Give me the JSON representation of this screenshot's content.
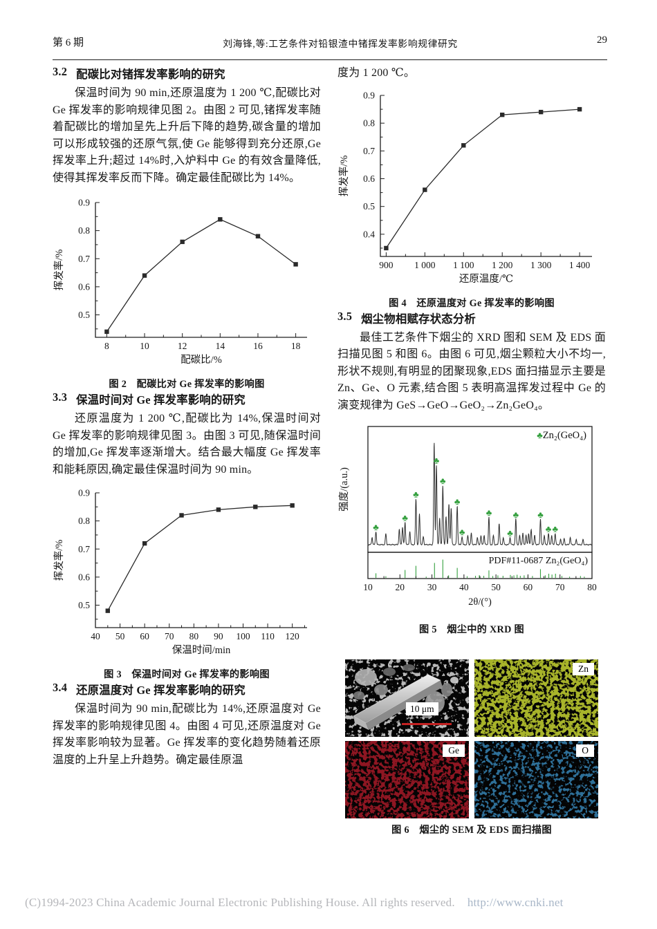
{
  "header": {
    "issue": "第 6 期",
    "running_title": "刘海锋,等:工艺条件对铅银渣中锗挥发率影响规律研究",
    "page_number": "29"
  },
  "footer": {
    "copyright": "(C)1994-2023 China Academic Journal Electronic Publishing House. All rights reserved.",
    "url": "http://www.cnki.net"
  },
  "sections": {
    "s32": {
      "num": "3.2",
      "title": "配碳比对锗挥发率影响的研究",
      "body": "保温时间为 90 min,还原温度为 1 200 ℃,配碳比对 Ge 挥发率的影响规律见图 2。由图 2 可见,锗挥发率随着配碳比的增加呈先上升后下降的趋势,碳含量的增加可以形成较强的还原气氛,使 Ge 能够得到充分还原,Ge 挥发率上升;超过 14%时,入炉料中 Ge 的有效含量降低,使得其挥发率反而下降。确定最佳配碳比为 14%。"
    },
    "s33": {
      "num": "3.3",
      "title": "保温时间对 Ge 挥发率影响的研究",
      "body": "还原温度为 1 200 ℃,配碳比为 14%,保温时间对 Ge 挥发率的影响规律见图 3。由图 3 可见,随保温时间的增加,Ge 挥发率逐渐增大。结合最大幅度 Ge 挥发率和能耗原因,确定最佳保温时间为 90 min。"
    },
    "s34": {
      "num": "3.4",
      "title": "还原温度对 Ge 挥发率影响的研究",
      "body": "保温时间为 90 min,配碳比为 14%,还原温度对 Ge 挥发率的影响规律见图 4。由图 4 可见,还原温度对 Ge 挥发率影响较为显著。Ge 挥发率的变化趋势随着还原温度的上升呈上升趋势。确定最佳原温",
      "continuation": "度为 1 200 ℃。"
    },
    "s35": {
      "num": "3.5",
      "title": "烟尘物相赋存状态分析",
      "body": "最佳工艺条件下烟尘的 XRD 图和 SEM 及 EDS 面扫描见图 5 和图 6。由图 6 可见,烟尘颗粒大小不均一,形状不规则,有明显的团聚现象,EDS 面扫描显示主要是 Zn、Ge、O 元素,结合图 5 表明高温挥发过程中 Ge 的演变规律为 GeS→GeO→GeO₂→Zn₂GeO₄。"
    }
  },
  "figures": {
    "fig2": {
      "caption": "图 2　配碳比对 Ge 挥发率的影响图"
    },
    "fig3": {
      "caption": "图 3　保温时间对 Ge 挥发率的影响图"
    },
    "fig4": {
      "caption": "图 4　还原温度对 Ge 挥发率的影响图"
    },
    "fig5": {
      "caption": "图 5　烟尘中的 XRD 图"
    },
    "fig6": {
      "caption": "图 6　烟尘的 SEM 及 EDS 面扫描图",
      "panels": [
        {
          "type": "sem",
          "scale_label": "10 μm",
          "scalebar_color": "#c42222"
        },
        {
          "type": "eds",
          "label": "Zn",
          "color": "#a8b42c",
          "seed": 11,
          "cut": -11.0
        },
        {
          "type": "eds",
          "label": "Ge",
          "color": "#8e1522",
          "seed": 23,
          "cut": -11.4
        },
        {
          "type": "eds",
          "label": "O",
          "color": "#2e6f99",
          "seed": 37,
          "cut": -12.4
        }
      ]
    }
  },
  "chart_data": [
    {
      "id": "fig2",
      "type": "line",
      "title": "配碳比对 Ge 挥发率的影响图",
      "xlabel": "配碳比/%",
      "ylabel": "挥发率/%",
      "x": [
        8,
        10,
        12,
        14,
        16,
        18
      ],
      "y": [
        0.44,
        0.64,
        0.76,
        0.84,
        0.78,
        0.68
      ],
      "xlim": [
        7.4,
        18.6
      ],
      "ylim": [
        0.42,
        0.9
      ],
      "xticks": [
        8,
        10,
        12,
        14,
        16,
        18
      ],
      "yticks": [
        0.5,
        0.6,
        0.7,
        0.8,
        0.9
      ],
      "xminor": 1,
      "yminor": 0.05,
      "line_color": "#2a2a2a",
      "marker": "square",
      "grid": false,
      "legend": null
    },
    {
      "id": "fig3",
      "type": "line",
      "title": "保温时间对 Ge 挥发率的影响图",
      "xlabel": "保温时间/min",
      "ylabel": "挥发率/%",
      "x": [
        45,
        60,
        75,
        90,
        105,
        120
      ],
      "y": [
        0.48,
        0.72,
        0.82,
        0.84,
        0.85,
        0.855
      ],
      "xlim": [
        40,
        126
      ],
      "ylim": [
        0.42,
        0.9
      ],
      "xticks": [
        40,
        50,
        60,
        70,
        80,
        90,
        100,
        110,
        120
      ],
      "yticks": [
        0.5,
        0.6,
        0.7,
        0.8,
        0.9
      ],
      "xminor": 5,
      "yminor": 0.05,
      "line_color": "#2a2a2a",
      "marker": "square",
      "grid": false,
      "legend": null
    },
    {
      "id": "fig4",
      "type": "line",
      "title": "还原温度对 Ge 挥发率的影响图",
      "xlabel": "还原温度/℃",
      "ylabel": "挥发率/%",
      "x": [
        900,
        1000,
        1100,
        1200,
        1300,
        1400
      ],
      "y": [
        0.35,
        0.56,
        0.72,
        0.83,
        0.84,
        0.85
      ],
      "xlim": [
        885,
        1432
      ],
      "ylim": [
        0.32,
        0.9
      ],
      "xticks": [
        900,
        1000,
        1100,
        1200,
        1300,
        1400
      ],
      "xtick_labels": [
        "900",
        "1 000",
        "1 100",
        "1 200",
        "1 300",
        "1 400"
      ],
      "yticks": [
        0.4,
        0.5,
        0.6,
        0.7,
        0.8,
        0.9
      ],
      "xminor": 50,
      "yminor": 0.05,
      "line_color": "#2a2a2a",
      "marker": "square",
      "grid": false,
      "legend": null
    },
    {
      "id": "fig5",
      "type": "xrd",
      "title": "烟尘中的 XRD 图",
      "xlabel": "2θ/(°)",
      "ylabel": "强度/(a.u.)",
      "xlim": [
        10,
        80
      ],
      "xticks": [
        10,
        20,
        30,
        40,
        50,
        60,
        70,
        80
      ],
      "xminor": 5,
      "legend": "Zn₂(GeO₄)",
      "legend_marker": "♣",
      "marker_color": "#35a03f",
      "line_color": "#2f2f2f",
      "ref_label": "PDF#11-0687 Zn₂(GeO₄)",
      "peaks": [
        [
          11.3,
          7
        ],
        [
          12.5,
          13
        ],
        [
          15.6,
          11
        ],
        [
          19.8,
          15
        ],
        [
          20.8,
          17
        ],
        [
          21.6,
          22
        ],
        [
          23.1,
          13
        ],
        [
          25.0,
          45
        ],
        [
          26.1,
          30
        ],
        [
          27.3,
          8
        ],
        [
          30.7,
          100
        ],
        [
          31.4,
          78
        ],
        [
          32.4,
          26
        ],
        [
          33.4,
          58
        ],
        [
          34.4,
          28
        ],
        [
          35.3,
          40
        ],
        [
          36.0,
          36
        ],
        [
          37.9,
          38
        ],
        [
          39.4,
          8
        ],
        [
          41.2,
          9
        ],
        [
          42.3,
          11
        ],
        [
          44.2,
          7
        ],
        [
          45.3,
          9
        ],
        [
          46.3,
          9
        ],
        [
          47.8,
          27
        ],
        [
          49.2,
          9
        ],
        [
          51.0,
          21
        ],
        [
          52.3,
          7
        ],
        [
          54.4,
          7
        ],
        [
          56.2,
          25
        ],
        [
          57.4,
          9
        ],
        [
          58.4,
          11
        ],
        [
          59.4,
          9
        ],
        [
          60.2,
          11
        ],
        [
          61.0,
          15
        ],
        [
          62.1,
          9
        ],
        [
          63.9,
          25
        ],
        [
          65.1,
          9
        ],
        [
          66.4,
          11
        ],
        [
          67.4,
          9
        ],
        [
          68.5,
          11
        ],
        [
          70.2,
          5
        ],
        [
          71.3,
          6
        ],
        [
          73.2,
          7
        ],
        [
          75.1,
          5
        ],
        [
          77.2,
          5
        ]
      ],
      "marked": [
        12.5,
        21.6,
        25.0,
        31.4,
        33.4,
        37.9,
        39.4,
        47.8,
        54.4,
        56.2,
        63.9,
        66.4,
        68.5
      ],
      "ref_sticks": [
        [
          12.5,
          22
        ],
        [
          15.6,
          8
        ],
        [
          21.6,
          38
        ],
        [
          25.0,
          58
        ],
        [
          28.2,
          6
        ],
        [
          30.8,
          72
        ],
        [
          33.4,
          88
        ],
        [
          35.2,
          12
        ],
        [
          37.9,
          48
        ],
        [
          41.0,
          8
        ],
        [
          43.6,
          10
        ],
        [
          44.8,
          13
        ],
        [
          46.2,
          10
        ],
        [
          47.8,
          36
        ],
        [
          49.0,
          9
        ],
        [
          50.6,
          12
        ],
        [
          52.2,
          10
        ],
        [
          54.5,
          14
        ],
        [
          55.6,
          12
        ],
        [
          56.6,
          15
        ],
        [
          57.6,
          10
        ],
        [
          58.8,
          12
        ],
        [
          60.0,
          10
        ],
        [
          61.4,
          9
        ],
        [
          63.9,
          42
        ],
        [
          65.4,
          12
        ],
        [
          66.5,
          20
        ],
        [
          67.5,
          16
        ],
        [
          68.6,
          20
        ],
        [
          70.6,
          9
        ],
        [
          73.0,
          6
        ],
        [
          76.4,
          9
        ],
        [
          77.6,
          6
        ]
      ]
    }
  ]
}
